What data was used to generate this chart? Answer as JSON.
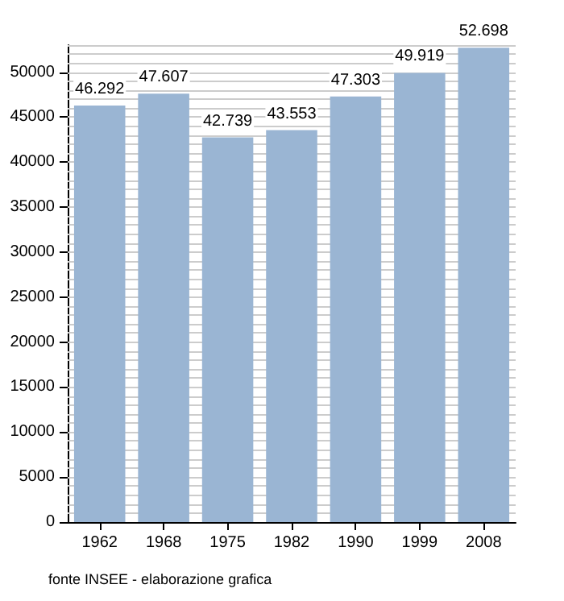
{
  "chart_data": {
    "type": "bar",
    "categories": [
      "1962",
      "1968",
      "1975",
      "1982",
      "1990",
      "1999",
      "2008"
    ],
    "values": [
      46292,
      47607,
      42739,
      43553,
      47303,
      49919,
      52698
    ],
    "value_labels": [
      "46.292",
      "47.607",
      "42.739",
      "43.553",
      "47.303",
      "49.919",
      "52.698"
    ],
    "color": "#9ab5d3",
    "ylim": [
      0,
      53000
    ],
    "yticks": [
      0,
      {
        "value": 1000,
        "label": null
      },
      {
        "value": 2000,
        "label": null
      },
      {
        "value": 3000,
        "label": null
      },
      {
        "value": 4000,
        "label": null
      },
      5000,
      {
        "value": 6000,
        "label": null
      },
      {
        "value": 7000,
        "label": null
      },
      {
        "value": 8000,
        "label": null
      },
      {
        "value": 9000,
        "label": null
      },
      10000,
      {
        "value": 11000,
        "label": null
      },
      {
        "value": 12000,
        "label": null
      },
      {
        "value": 13000,
        "label": null
      },
      {
        "value": 14000,
        "label": null
      },
      15000,
      {
        "value": 16000,
        "label": null
      },
      {
        "value": 17000,
        "label": null
      },
      {
        "value": 18000,
        "label": null
      },
      {
        "value": 19000,
        "label": null
      },
      20000,
      {
        "value": 21000,
        "label": null
      },
      {
        "value": 22000,
        "label": null
      },
      {
        "value": 23000,
        "label": null
      },
      {
        "value": 24000,
        "label": null
      },
      25000,
      {
        "value": 26000,
        "label": null
      },
      {
        "value": 27000,
        "label": null
      },
      {
        "value": 28000,
        "label": null
      },
      {
        "value": 29000,
        "label": null
      },
      30000,
      {
        "value": 31000,
        "label": null
      },
      {
        "value": 32000,
        "label": null
      },
      {
        "value": 33000,
        "label": null
      },
      {
        "value": 34000,
        "label": null
      },
      35000,
      {
        "value": 36000,
        "label": null
      },
      {
        "value": 37000,
        "label": null
      },
      {
        "value": 38000,
        "label": null
      },
      {
        "value": 39000,
        "label": null
      },
      40000,
      {
        "value": 41000,
        "label": null
      },
      {
        "value": 42000,
        "label": null
      },
      {
        "value": 43000,
        "label": null
      },
      {
        "value": 44000,
        "label": null
      },
      45000,
      {
        "value": 46000,
        "label": null
      },
      {
        "value": 47000,
        "label": null
      },
      {
        "value": 48000,
        "label": null
      },
      {
        "value": 49000,
        "label": null
      },
      50000,
      {
        "value": 51000,
        "label": null
      },
      {
        "value": 52000,
        "label": null
      },
      {
        "value": 53000,
        "label": null
      }
    ],
    "grid": "y",
    "annotations": [
      "fonte INSEE - elaborazione grafica"
    ]
  }
}
